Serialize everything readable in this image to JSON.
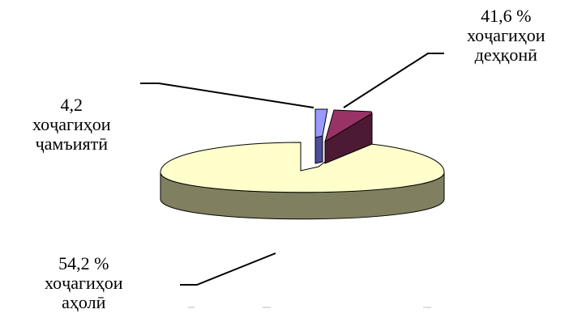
{
  "chart_data": {
    "type": "pie",
    "style": "3d-exploded",
    "title": "",
    "slices": [
      {
        "value_label": "41,6 %",
        "name": "хоҷагиҳои деҳқонӣ",
        "name_lines": [
          "хоҷагиҳои",
          "деҳқонӣ"
        ],
        "value": 41.6,
        "color": "#993366"
      },
      {
        "value_label": "4,2",
        "name": "хоҷагиҳои ҷамъиятӣ",
        "name_lines": [
          "хоҷагиҳои",
          "ҷамъиятӣ"
        ],
        "value": 4.2,
        "color": "#9999ff"
      },
      {
        "value_label": "54,2 %",
        "name": "хоҷагиҳои аҳолӣ",
        "name_lines": [
          "хоҷагиҳои",
          "аҳолӣ"
        ],
        "value": 54.2,
        "color": "#ffffcc"
      }
    ]
  }
}
